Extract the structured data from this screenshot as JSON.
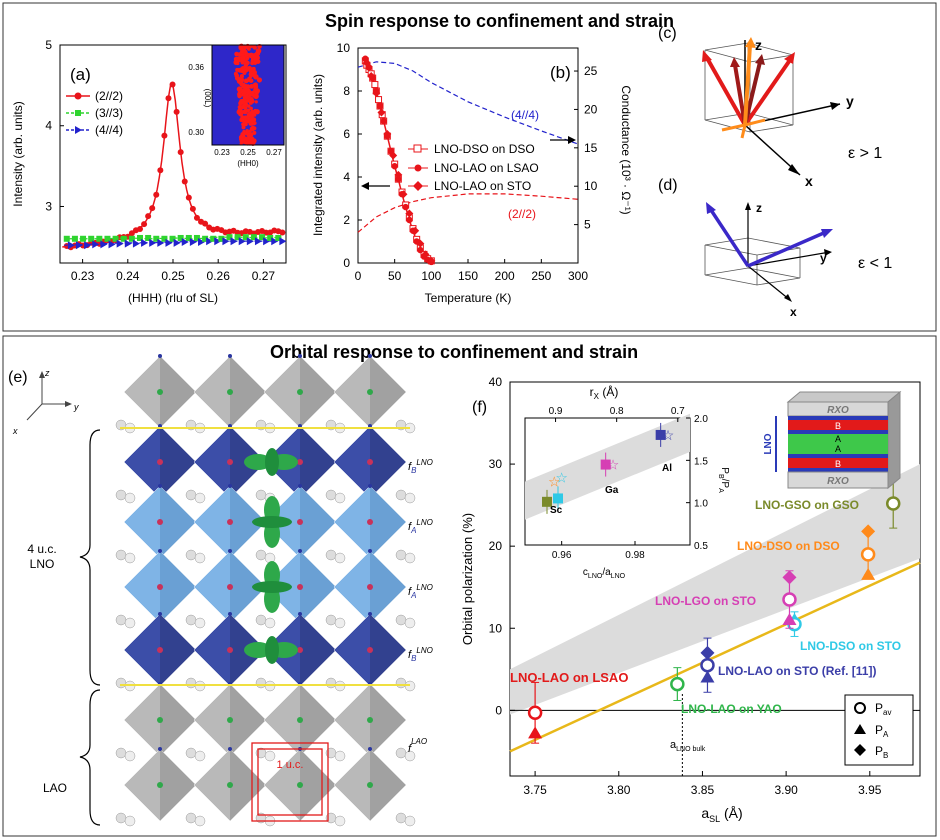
{
  "top": {
    "title": "Spin response to confinement and strain",
    "panel_a": {
      "label": "(a)",
      "xlabel": "(HHH) (rlu of SL)",
      "ylabel": "Intensity (arb. units)",
      "xticks": [
        "0.23",
        "0.24",
        "0.25",
        "0.26",
        "0.27"
      ],
      "yticks": [
        "3",
        "4",
        "5"
      ],
      "legend": [
        "(2//2)",
        "(3//3)",
        "(4//4)"
      ],
      "colors": [
        "#e8141a",
        "#2fd42f",
        "#2222cc"
      ],
      "inset": {
        "xlabel": "(HH0)",
        "ylabel": "(00L)",
        "xticks": [
          "0.23",
          "0.25",
          "0.27"
        ],
        "yticks": [
          "0.30",
          "0.36"
        ]
      }
    },
    "panel_b": {
      "label": "(b)",
      "xlabel": "Temperature (K)",
      "ylabel": "Integrated intensity (arb. units)",
      "ylabel_right": "Conductance (10³ · Ω⁻¹)",
      "xticks": [
        "0",
        "50",
        "100",
        "150",
        "200",
        "250",
        "300"
      ],
      "yticks": [
        "0",
        "2",
        "4",
        "6",
        "8",
        "10"
      ],
      "yticks_right": [
        "5",
        "10",
        "15",
        "20",
        "25"
      ],
      "legend": [
        "LNO-DSO on DSO",
        "LNO-LAO on LSAO",
        "LNO-LAO on STO"
      ],
      "curve_labels": [
        "(4//4)",
        "(2//2)"
      ]
    },
    "panel_c": {
      "label": "(c)",
      "axes": [
        "z",
        "y",
        "x"
      ],
      "condition": "ε > 1"
    },
    "panel_d": {
      "label": "(d)",
      "axes": [
        "z",
        "y",
        "x"
      ],
      "condition": "ε < 1"
    }
  },
  "bottom": {
    "title": "Orbital response to confinement and strain",
    "panel_e": {
      "label": "(e)",
      "axes": [
        "z",
        "y",
        "x"
      ],
      "brace_top": [
        "4 u.c.",
        "LNO"
      ],
      "brace_bottom": "LAO",
      "layer_labels": [
        "f",
        "B",
        "LNO",
        "A",
        "LAO"
      ],
      "cell_label": "1 u.c."
    },
    "panel_f": {
      "label": "(f)",
      "xlabel": "a",
      "xlabel_sub": "SL",
      "xlabel_unit": " (Å)",
      "ylabel": "Orbital polarization (%)",
      "xticks": [
        "3.75",
        "3.80",
        "3.85",
        "3.90",
        "3.95"
      ],
      "yticks": [
        "0",
        "10",
        "20",
        "30",
        "40"
      ],
      "bulk_label": "a",
      "bulk_sub": "LNO bulk",
      "point_labels": [
        "LNO-LAO on LSAO",
        "LNO-LAO on YAO",
        "LNO-LAO on STO (Ref. [11])",
        "LNO-DSO on STO",
        "LNO-LGO on STO",
        "LNO-DSO on DSO",
        "LNO-GSO on GSO"
      ],
      "legend": [
        {
          "sym": "P",
          "sub": "av"
        },
        {
          "sym": "P",
          "sub": "A"
        },
        {
          "sym": "P",
          "sub": "B"
        }
      ],
      "schematic": [
        "RXO",
        "B",
        "A",
        "A",
        "B",
        "RXO",
        "LNO"
      ],
      "inset": {
        "top_label": "r",
        "top_sub": "X",
        "top_unit": " (Å)",
        "top_ticks": [
          "0.9",
          "0.8",
          "0.7"
        ],
        "bottom_label": "c",
        "bottom_sub1": "LNO",
        "bottom_mid": "/a",
        "bottom_sub2": "LNO",
        "bottom_ticks": [
          "0.96",
          "0.98"
        ],
        "right_label": "P",
        "right_sub1": "B",
        "right_mid": "/P",
        "right_sub2": "A",
        "right_ticks": [
          "0.5",
          "1.0",
          "1.5",
          "2.0"
        ],
        "point_labels": [
          "Sc",
          "Ga",
          "Al"
        ]
      }
    }
  },
  "chart_data": [
    {
      "type": "line",
      "title": "Spin response to confinement and strain (a)",
      "xlabel": "(HHH) (rlu of SL)",
      "ylabel": "Intensity (arb. units)",
      "xlim": [
        0.225,
        0.275
      ],
      "ylim": [
        2.3,
        5
      ],
      "series": [
        {
          "name": "(2//2)",
          "shape": "lorentzian",
          "center": 0.2497,
          "amplitude": 1.95,
          "fwhm": 0.0045,
          "baseline": [
            2.48,
            2.68
          ]
        },
        {
          "name": "(3//3)",
          "x": [
            0.226,
            0.23,
            0.235,
            0.24,
            0.245,
            0.25,
            0.255,
            0.26,
            0.265,
            0.27,
            0.274
          ],
          "y": [
            2.6,
            2.6,
            2.6,
            2.61,
            2.6,
            2.61,
            2.6,
            2.62,
            2.62,
            2.61,
            2.62
          ]
        },
        {
          "name": "(4//4)",
          "x": [
            0.226,
            0.23,
            0.235,
            0.24,
            0.245,
            0.25,
            0.255,
            0.26,
            0.265,
            0.27,
            0.274
          ],
          "y": [
            2.52,
            2.53,
            2.54,
            2.55,
            2.55,
            2.56,
            2.57,
            2.57,
            2.57,
            2.57,
            2.57
          ]
        }
      ]
    },
    {
      "type": "line",
      "title": "Spin response to confinement and strain (b)",
      "xlabel": "Temperature (K)",
      "ylabel": "Integrated intensity (arb. units)",
      "ylabel_right": "Conductance (10^3 Ω^-1)",
      "xlim": [
        0,
        300
      ],
      "ylim": [
        0,
        10
      ],
      "ylim_right": [
        0,
        28
      ],
      "series": [
        {
          "name": "LNO-DSO on DSO",
          "x": [
            10,
            12,
            15,
            18,
            20,
            23,
            25,
            28,
            30,
            33,
            35,
            40,
            45,
            50,
            55,
            60,
            65,
            70,
            75,
            80,
            85,
            90,
            95,
            100
          ],
          "y": [
            9.4,
            9.2,
            9.0,
            8.8,
            8.6,
            8.3,
            8.0,
            7.6,
            7.3,
            6.9,
            6.6,
            5.9,
            5.2,
            4.6,
            3.9,
            3.3,
            2.7,
            2.1,
            1.6,
            1.1,
            0.7,
            0.4,
            0.2,
            0.1
          ]
        },
        {
          "name": "LNO-LAO on LSAO",
          "x": [
            10,
            15,
            20,
            25,
            30,
            35,
            40,
            45,
            50,
            55,
            60,
            65,
            70,
            75,
            80,
            85,
            90,
            95,
            100
          ],
          "y": [
            9.5,
            9.1,
            8.6,
            8.0,
            7.3,
            6.6,
            5.9,
            5.2,
            4.5,
            3.9,
            3.2,
            2.6,
            2.0,
            1.5,
            1.0,
            0.6,
            0.3,
            0.15,
            0.05
          ]
        },
        {
          "name": "LNO-LAO on STO",
          "x": [
            12,
            18,
            25,
            32,
            40,
            48,
            55,
            62,
            70,
            78,
            85,
            92,
            100
          ],
          "y": [
            9.3,
            8.7,
            7.9,
            7.0,
            6.0,
            5.0,
            4.1,
            3.2,
            2.3,
            1.5,
            0.9,
            0.4,
            0.1
          ]
        },
        {
          "name": "(4//4)",
          "axis": "right",
          "x": [
            0,
            25,
            50,
            75,
            100,
            150,
            200,
            250,
            300
          ],
          "y": [
            25.5,
            26.2,
            26.0,
            25.0,
            23.5,
            21.0,
            19.0,
            17.2,
            15.5
          ]
        },
        {
          "name": "(2//2)",
          "axis": "right",
          "x": [
            0,
            25,
            50,
            75,
            100,
            150,
            200,
            250,
            300
          ],
          "y": [
            4.0,
            6.0,
            7.2,
            8.0,
            8.5,
            9.0,
            9.0,
            8.7,
            8.3
          ]
        }
      ]
    },
    {
      "type": "scatter",
      "title": "Orbital response to confinement and strain (f)",
      "xlabel": "a_SL (Å)",
      "ylabel": "Orbital polarization (%)",
      "xlim": [
        3.735,
        3.98
      ],
      "ylim": [
        -8,
        40
      ],
      "a_LNO_bulk": 3.838,
      "fit_line": {
        "x": [
          3.735,
          3.98
        ],
        "y": [
          -5,
          18
        ]
      },
      "band": {
        "x": [
          3.735,
          3.98
        ],
        "lower": [
          -0.5,
          18.5
        ],
        "upper": [
          5,
          30
        ]
      },
      "points": [
        {
          "label": "LNO-LAO on LSAO",
          "x": 3.75,
          "P_av": -0.3,
          "P_A": -2.8,
          "err": 3.7,
          "color": "#e8141a"
        },
        {
          "label": "LNO-LAO on YAO",
          "x": 3.835,
          "P_av": 3.2,
          "err": 2.0,
          "color": "#2fb54a"
        },
        {
          "label": "LNO-LAO on STO (Ref. [11])",
          "x": 3.853,
          "P_av": 5.5,
          "P_A": 4.0,
          "P_B": 7.0,
          "err": 3.3,
          "color": "#3b3ea8"
        },
        {
          "label": "LNO-DSO on STO",
          "x": 3.905,
          "P_av": 10.5,
          "P_A": 11.0,
          "err": 1.5,
          "color": "#2fc9e6"
        },
        {
          "label": "LNO-LGO on STO",
          "x": 3.902,
          "P_av": 13.5,
          "P_A": 11.0,
          "P_B": 16.2,
          "err": 3.5,
          "color": "#d63fb4"
        },
        {
          "label": "LNO-DSO on DSO",
          "x": 3.949,
          "P_av": 19.0,
          "P_A": 16.5,
          "P_B": 21.8,
          "err": 2.5,
          "color": "#ff8a1a"
        },
        {
          "label": "LNO-GSO on GSO",
          "x": 3.964,
          "P_av": 25.2,
          "err": 3.0,
          "color": "#7a8a2a"
        }
      ]
    },
    {
      "type": "scatter",
      "title": "Orbital response inset (f)",
      "xlabel": "c_LNO/a_LNO",
      "ylabel_right": "P_B/P_A",
      "top_axis": "r_X (Å)",
      "xlim": [
        0.95,
        0.995
      ],
      "ylim": [
        0.5,
        2.0
      ],
      "series": [
        {
          "name": "Sc",
          "x": [
            0.956,
            0.958,
            0.959,
            0.96
          ],
          "y": [
            1.01,
            1.25,
            1.05,
            1.3
          ],
          "colors": [
            "#7a8a2a",
            "#ff8a1a",
            "#2fc9e6",
            "#2fc9e6"
          ]
        },
        {
          "name": "Ga",
          "x": [
            0.972,
            0.974
          ],
          "y": [
            1.45,
            1.45
          ],
          "colors": [
            "#d63fb4",
            "#d63fb4"
          ]
        },
        {
          "name": "Al",
          "x": [
            0.987,
            0.989
          ],
          "y": [
            1.8,
            1.8
          ],
          "colors": [
            "#3b3ea8",
            "#3b3ea8"
          ]
        }
      ]
    }
  ]
}
